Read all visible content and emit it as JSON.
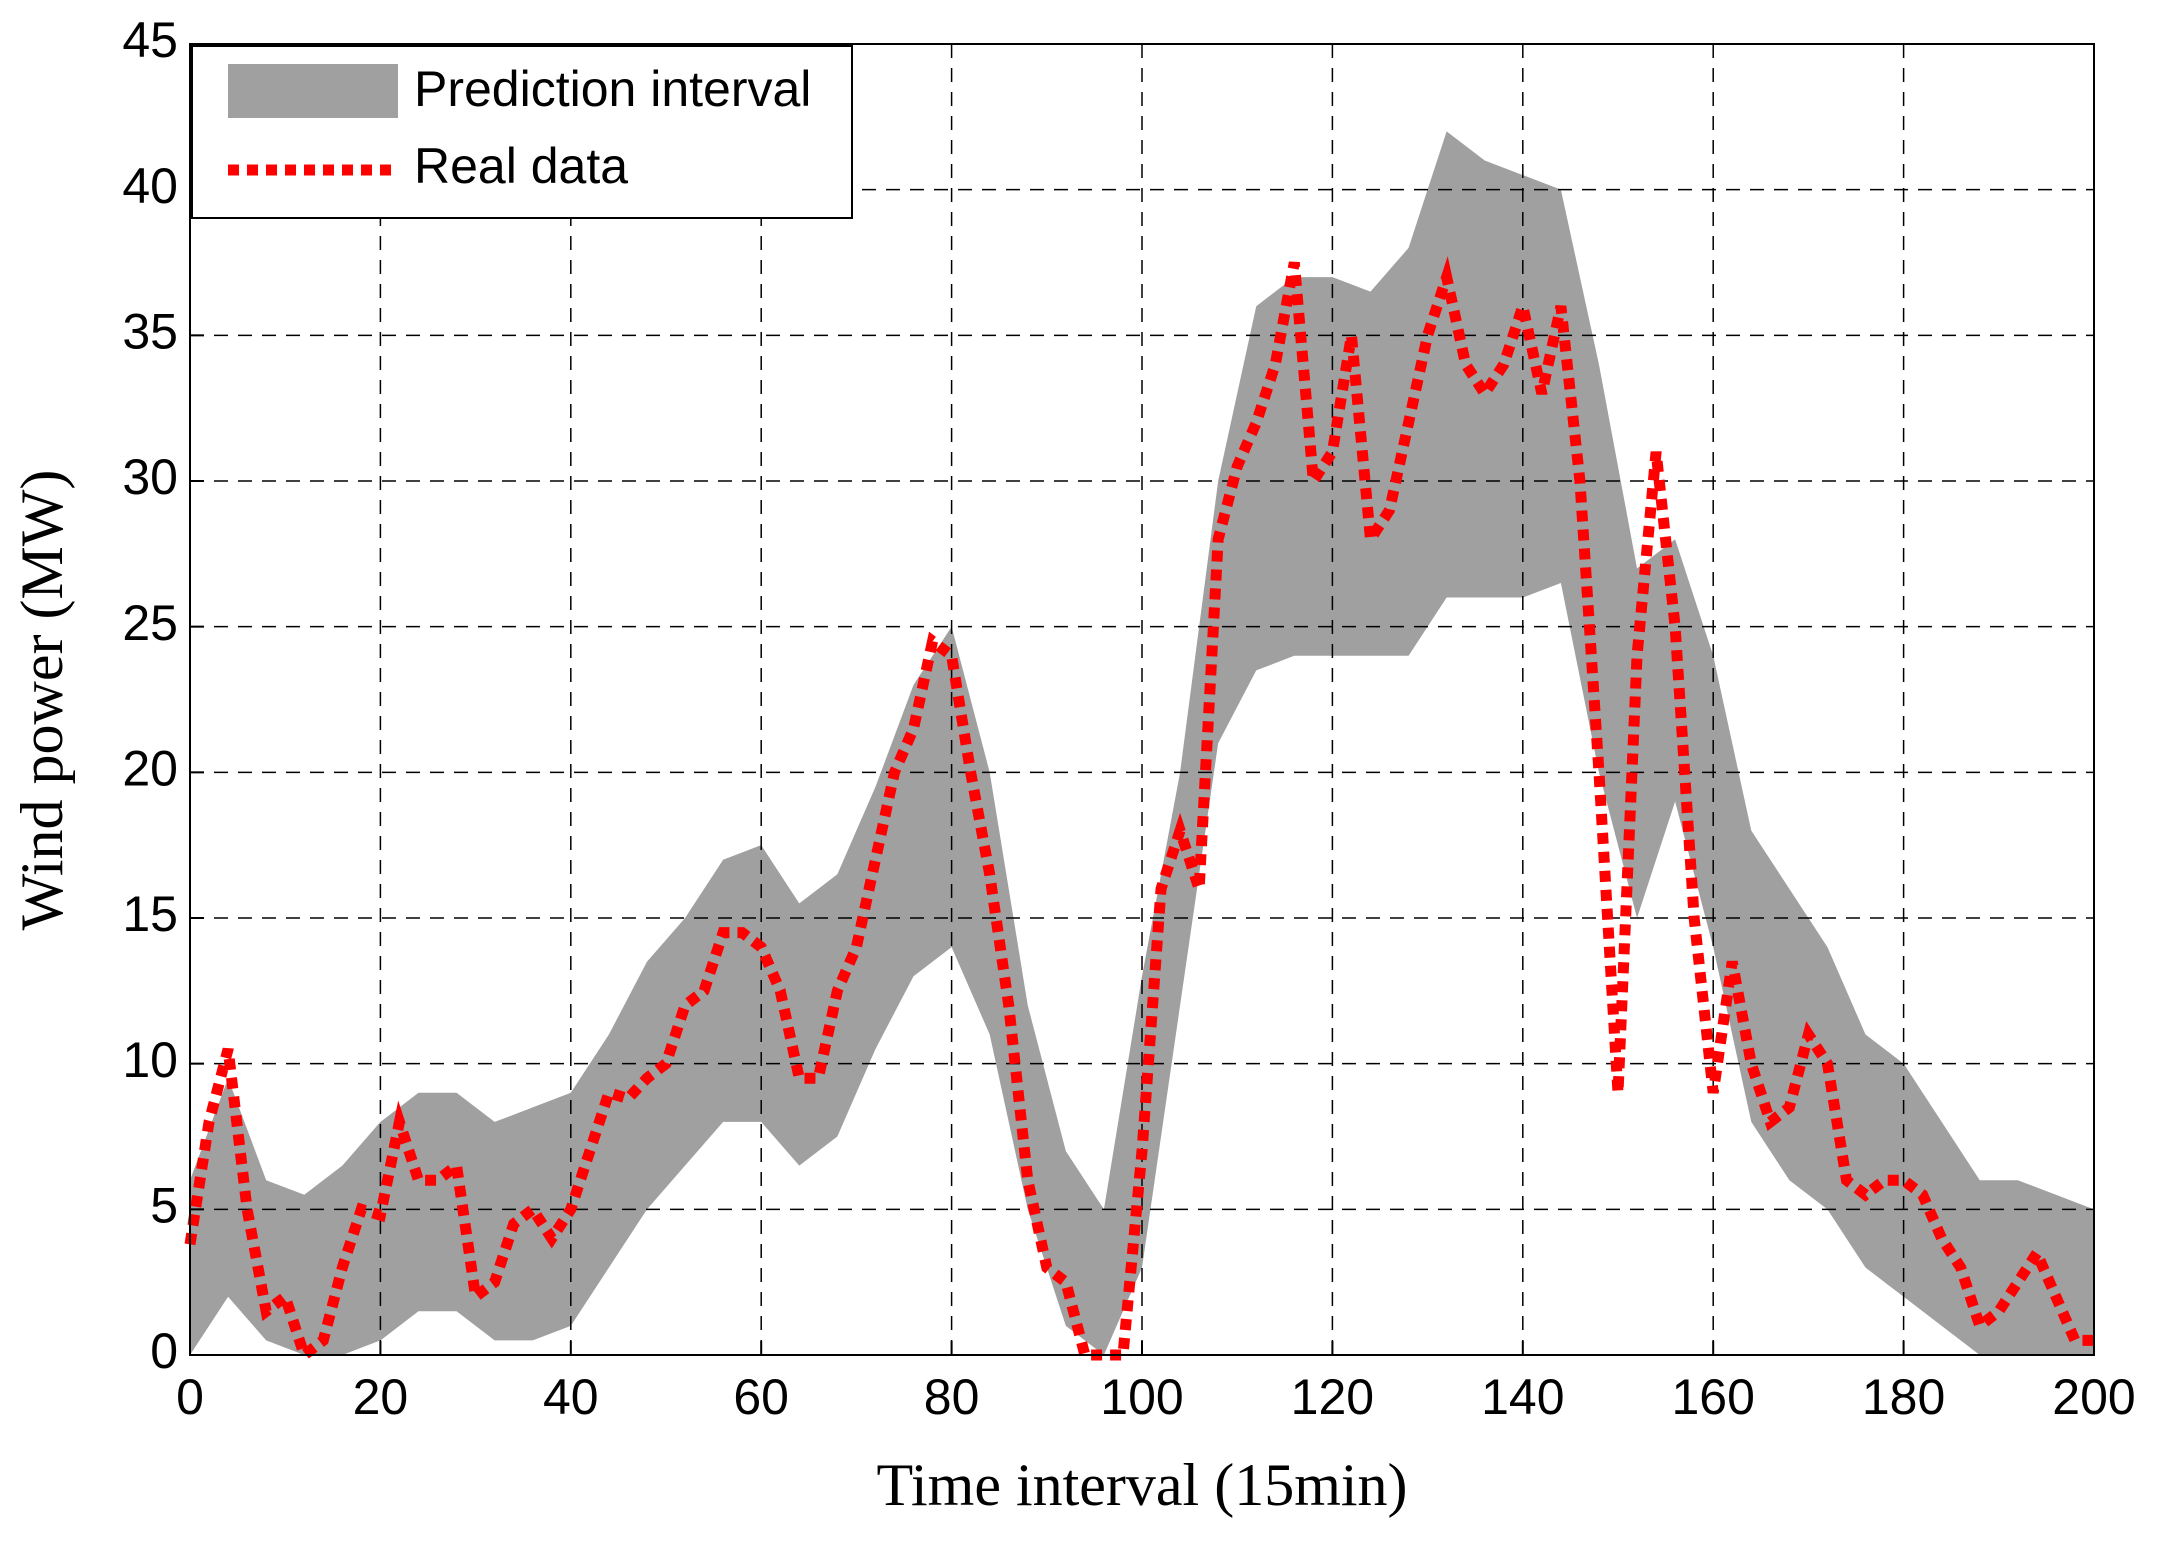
{
  "chart_data": {
    "type": "line",
    "xlabel": "Time interval (15min)",
    "ylabel": "Wind power (MW)",
    "xlim": [
      0,
      200
    ],
    "ylim": [
      0,
      45
    ],
    "xticks": [
      0,
      20,
      40,
      60,
      80,
      100,
      120,
      140,
      160,
      180,
      200
    ],
    "yticks": [
      0,
      5,
      10,
      15,
      20,
      25,
      30,
      35,
      40,
      45
    ],
    "grid": true,
    "legend": "upper left",
    "band": {
      "name": "Prediction interval",
      "color": "#a0a0a0",
      "x": [
        0,
        4,
        8,
        12,
        16,
        20,
        24,
        28,
        32,
        36,
        40,
        44,
        48,
        52,
        56,
        60,
        64,
        68,
        72,
        76,
        80,
        84,
        88,
        92,
        96,
        100,
        104,
        108,
        112,
        116,
        120,
        124,
        128,
        132,
        136,
        140,
        144,
        148,
        152,
        156,
        160,
        164,
        168,
        172,
        176,
        180,
        184,
        188,
        192,
        196,
        200
      ],
      "upper": [
        6,
        9.5,
        6,
        5.5,
        6.5,
        8,
        9,
        9,
        8,
        8.5,
        9,
        11,
        13.5,
        15,
        17,
        17.5,
        15.5,
        16.5,
        19.5,
        23,
        25,
        20,
        12,
        7,
        5,
        13,
        20,
        30,
        36,
        37,
        37,
        36.5,
        38,
        42,
        41,
        40.5,
        40,
        34,
        27,
        28,
        24,
        18,
        16,
        14,
        11,
        10,
        8,
        6,
        6,
        5.5,
        5
      ],
      "lower": [
        0,
        2,
        0.5,
        0,
        0,
        0.5,
        1.5,
        1.5,
        0.5,
        0.5,
        1,
        3,
        5,
        6.5,
        8,
        8,
        6.5,
        7.5,
        10.5,
        13,
        14,
        11,
        5,
        1,
        0,
        3,
        12,
        21,
        23.5,
        24,
        24,
        24,
        24,
        26,
        26,
        26,
        26.5,
        20,
        15,
        19,
        14,
        8,
        6,
        5,
        3,
        2,
        1,
        0,
        0,
        0,
        0
      ]
    },
    "series": [
      {
        "name": "Real data",
        "color": "#ff0000",
        "x": [
          0,
          2,
          4,
          6,
          8,
          10,
          12,
          14,
          16,
          18,
          20,
          22,
          24,
          26,
          28,
          30,
          32,
          34,
          36,
          38,
          40,
          42,
          44,
          46,
          48,
          50,
          52,
          54,
          56,
          58,
          60,
          62,
          64,
          66,
          68,
          70,
          72,
          74,
          76,
          78,
          80,
          82,
          84,
          86,
          88,
          90,
          92,
          94,
          96,
          98,
          100,
          102,
          104,
          106,
          108,
          110,
          112,
          114,
          116,
          118,
          120,
          122,
          124,
          126,
          128,
          130,
          132,
          134,
          136,
          138,
          140,
          142,
          144,
          146,
          148,
          150,
          152,
          154,
          156,
          158,
          160,
          162,
          164,
          166,
          168,
          170,
          172,
          174,
          176,
          178,
          180,
          182,
          184,
          186,
          188,
          190,
          192,
          194,
          196,
          198,
          200
        ],
        "values": [
          3.8,
          8,
          10.5,
          5,
          1.5,
          2,
          0,
          0.5,
          3,
          5,
          4.8,
          8,
          6,
          6,
          6.5,
          2,
          2.5,
          4.5,
          5,
          4,
          5,
          7,
          9,
          8.8,
          9.5,
          10,
          12,
          12.5,
          14.5,
          14.5,
          14,
          12.5,
          9.5,
          9.5,
          12.5,
          14,
          17,
          20,
          21.5,
          24.5,
          24,
          20,
          16.5,
          12,
          6,
          3,
          2.5,
          0,
          0,
          0,
          7,
          16,
          18,
          16,
          28,
          30.5,
          32,
          34,
          37.5,
          30,
          31,
          35,
          28,
          29,
          32,
          35,
          37,
          34,
          33,
          34,
          36,
          33,
          36,
          30,
          20,
          9,
          24,
          31,
          25,
          15,
          9,
          13.5,
          10,
          8,
          8.5,
          11,
          10,
          6,
          5.5,
          6,
          6,
          5.5,
          4,
          3,
          1,
          1.5,
          2.5,
          3.5,
          2,
          0.5,
          0.5
        ]
      }
    ]
  }
}
